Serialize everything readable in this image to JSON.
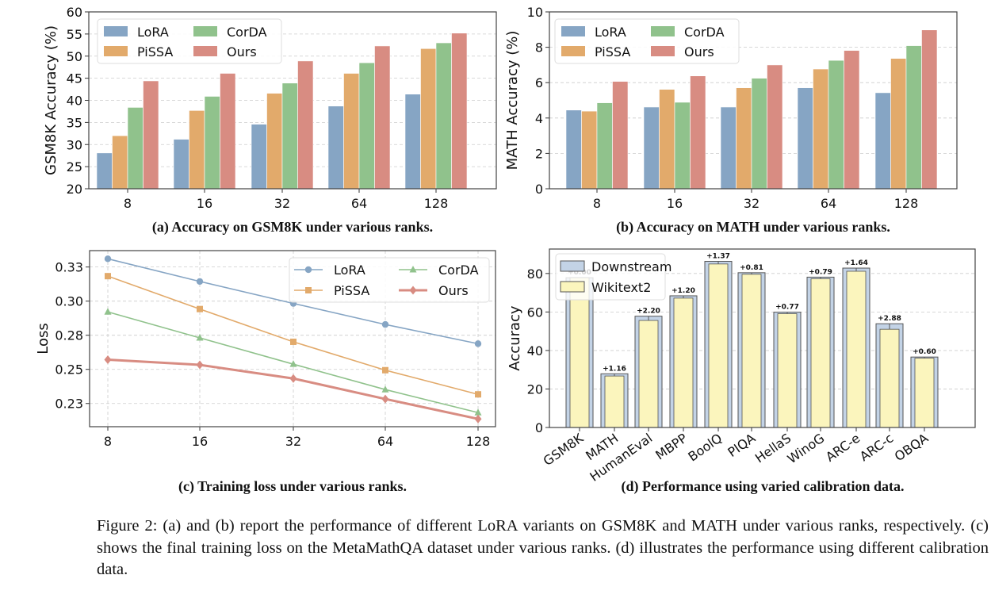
{
  "colors": {
    "LoRA": "#86a5c4",
    "PiSSA": "#e2aa6b",
    "CorDA": "#90c28c",
    "Ours": "#d88c82",
    "Downstream": "#c3d3e6",
    "Wikitext2": "#fbf5bd"
  },
  "chart_data": [
    {
      "id": "a",
      "type": "bar",
      "title": "(a) Accuracy on GSM8K under various ranks.",
      "xlabel": "",
      "ylabel": "GSM8K Accuracy (%)",
      "categories": [
        "8",
        "16",
        "32",
        "64",
        "128"
      ],
      "ylim": [
        20,
        60
      ],
      "yticks": [
        20,
        25,
        30,
        35,
        40,
        45,
        50,
        55,
        60
      ],
      "grid": true,
      "legend": "top-left",
      "series": [
        {
          "name": "LoRA",
          "values": [
            28.1,
            31.2,
            34.6,
            38.7,
            41.4
          ]
        },
        {
          "name": "PiSSA",
          "values": [
            32.0,
            37.7,
            41.6,
            46.1,
            51.7
          ]
        },
        {
          "name": "CorDA",
          "values": [
            38.4,
            40.9,
            43.9,
            48.5,
            53.0
          ]
        },
        {
          "name": "Ours",
          "values": [
            44.4,
            46.1,
            48.9,
            52.3,
            55.2
          ]
        }
      ]
    },
    {
      "id": "b",
      "type": "bar",
      "title": "(b) Accuracy on MATH under various ranks.",
      "xlabel": "",
      "ylabel": "MATH Accuracy (%)",
      "categories": [
        "8",
        "16",
        "32",
        "64",
        "128"
      ],
      "ylim": [
        0,
        10
      ],
      "yticks": [
        0,
        2,
        4,
        6,
        8,
        10
      ],
      "grid": true,
      "legend": "top-left",
      "series": [
        {
          "name": "LoRA",
          "values": [
            4.45,
            4.62,
            4.62,
            5.71,
            5.43
          ]
        },
        {
          "name": "PiSSA",
          "values": [
            4.39,
            5.62,
            5.71,
            6.77,
            7.37
          ]
        },
        {
          "name": "CorDA",
          "values": [
            4.86,
            4.89,
            6.25,
            7.26,
            8.09
          ]
        },
        {
          "name": "Ours",
          "values": [
            6.07,
            6.38,
            7.0,
            7.82,
            8.98
          ]
        }
      ]
    },
    {
      "id": "c",
      "type": "line",
      "title": "(c) Training loss under various ranks.",
      "xlabel": "",
      "ylabel": "Loss",
      "categories": [
        "8",
        "16",
        "32",
        "64",
        "128"
      ],
      "ylim": [
        0.208,
        0.337
      ],
      "yticks": [
        0.225,
        0.25,
        0.275,
        0.3,
        0.325
      ],
      "ytick_labels": [
        "0.23",
        "0.25",
        "0.28",
        "0.30",
        "0.33"
      ],
      "grid": true,
      "legend": "top-right",
      "series": [
        {
          "name": "LoRA",
          "marker": "circle",
          "values": [
            0.331,
            0.3144,
            0.2983,
            0.2829,
            0.2688
          ]
        },
        {
          "name": "PiSSA",
          "marker": "square",
          "values": [
            0.3183,
            0.2942,
            0.2702,
            0.2494,
            0.2317
          ]
        },
        {
          "name": "CorDA",
          "marker": "triangle",
          "values": [
            0.2921,
            0.2731,
            0.2538,
            0.2352,
            0.2183
          ]
        },
        {
          "name": "Ours",
          "marker": "diamond",
          "values": [
            0.2571,
            0.2533,
            0.2433,
            0.2283,
            0.2137
          ]
        }
      ]
    },
    {
      "id": "d",
      "type": "bar",
      "title": "(d) Performance using varied calibration data.",
      "xlabel": "",
      "ylabel": "Accuracy",
      "categories": [
        "GSM8K",
        "MATH",
        "HumanEval",
        "MBPP",
        "BoolQ",
        "PIQA",
        "HellaS",
        "WinoG",
        "ARC-e",
        "ARC-c",
        "OBQA"
      ],
      "ylim": [
        0,
        92.7
      ],
      "yticks": [
        0,
        20,
        40,
        60,
        80
      ],
      "grid": true,
      "legend": "top-left",
      "series": [
        {
          "name": "Downstream",
          "values": [
            77.8,
            27.9,
            57.8,
            68.4,
            86.3,
            80.4,
            59.9,
            78.1,
            82.8,
            53.9,
            36.6
          ]
        },
        {
          "name": "Wikitext2",
          "values": [
            77.8,
            26.74,
            55.6,
            67.2,
            84.93,
            79.59,
            59.13,
            77.31,
            81.16,
            51.02,
            36.0
          ]
        }
      ],
      "data_labels": [
        "+0.00",
        "+1.16",
        "+2.20",
        "+1.20",
        "+1.37",
        "+0.81",
        "+0.77",
        "+0.79",
        "+1.64",
        "+2.88",
        "+0.60"
      ]
    }
  ],
  "caption": "Figure 2: (a) and (b) report the performance of different LoRA variants on GSM8K and MATH under various ranks, respectively. (c) shows the final training loss on the MetaMathQA dataset under various ranks. (d) illustrates the performance using different calibration data."
}
